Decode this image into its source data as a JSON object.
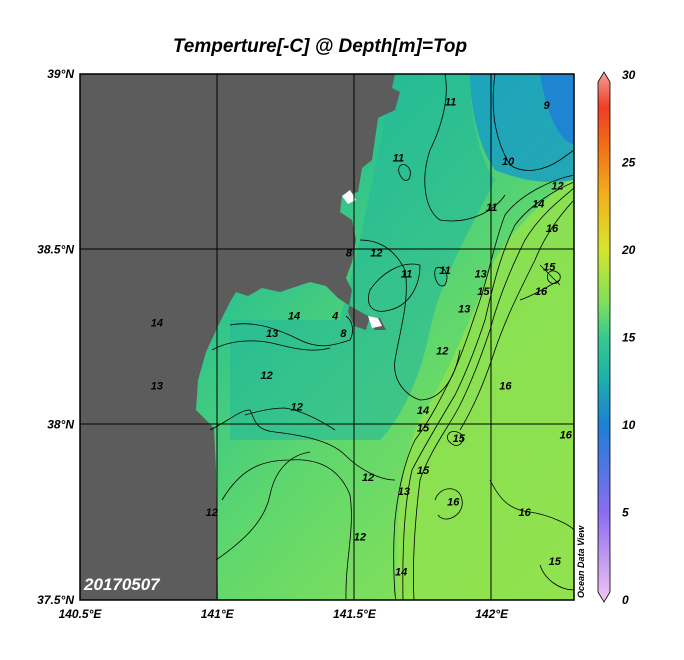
{
  "chart_data": {
    "type": "heatmap",
    "title": "Temperture[-C] @ Depth[m]=Top",
    "date_label": "20170507",
    "watermark": "Ocean Data View",
    "x_axis": {
      "range": [
        140.5,
        142.3
      ],
      "ticks": [
        {
          "value": 140.5,
          "label": "140.5°E"
        },
        {
          "value": 141.0,
          "label": "141°E"
        },
        {
          "value": 141.5,
          "label": "141.5°E"
        },
        {
          "value": 142.0,
          "label": "142°E"
        }
      ]
    },
    "y_axis": {
      "range": [
        37.5,
        39.0
      ],
      "ticks": [
        {
          "value": 37.5,
          "label": "37.5°N"
        },
        {
          "value": 38.0,
          "label": "38°N"
        },
        {
          "value": 38.5,
          "label": "38.5°N"
        },
        {
          "value": 39.0,
          "label": "39°N"
        }
      ]
    },
    "grid": true,
    "colorbar": {
      "range": [
        0,
        30
      ],
      "ticks": [
        0,
        5,
        10,
        15,
        20,
        25,
        30
      ],
      "stops": [
        {
          "value": 0,
          "color": "#f3c6f2"
        },
        {
          "value": 5,
          "color": "#8c6cf0"
        },
        {
          "value": 10,
          "color": "#1c7fd6"
        },
        {
          "value": 13,
          "color": "#1fb5a7"
        },
        {
          "value": 15,
          "color": "#39c98d"
        },
        {
          "value": 17,
          "color": "#7fe05a"
        },
        {
          "value": 20,
          "color": "#d7e52c"
        },
        {
          "value": 23,
          "color": "#f2b01c"
        },
        {
          "value": 26,
          "color": "#f06a18"
        },
        {
          "value": 28,
          "color": "#ef3e26"
        },
        {
          "value": 30,
          "color": "#f4a09a"
        }
      ]
    },
    "land_color": "#5c5c5c",
    "contour_labels": [
      {
        "lon": 142.2,
        "lat": 38.9,
        "label": "9"
      },
      {
        "lon": 141.85,
        "lat": 38.91,
        "label": "11"
      },
      {
        "lon": 142.06,
        "lat": 38.74,
        "label": "10"
      },
      {
        "lon": 141.66,
        "lat": 38.75,
        "label": "11"
      },
      {
        "lon": 142.24,
        "lat": 38.67,
        "label": "12"
      },
      {
        "lon": 142.17,
        "lat": 38.62,
        "label": "14"
      },
      {
        "lon": 142.0,
        "lat": 38.61,
        "label": "11"
      },
      {
        "lon": 142.22,
        "lat": 38.55,
        "label": "16"
      },
      {
        "lon": 141.58,
        "lat": 38.48,
        "label": "12"
      },
      {
        "lon": 141.48,
        "lat": 38.48,
        "label": "8"
      },
      {
        "lon": 141.69,
        "lat": 38.42,
        "label": "11"
      },
      {
        "lon": 141.83,
        "lat": 38.43,
        "label": "11"
      },
      {
        "lon": 141.96,
        "lat": 38.42,
        "label": "13"
      },
      {
        "lon": 142.21,
        "lat": 38.44,
        "label": "15"
      },
      {
        "lon": 141.97,
        "lat": 38.37,
        "label": "15"
      },
      {
        "lon": 142.18,
        "lat": 38.37,
        "label": "16"
      },
      {
        "lon": 141.9,
        "lat": 38.32,
        "label": "13"
      },
      {
        "lon": 141.28,
        "lat": 38.3,
        "label": "14"
      },
      {
        "lon": 141.43,
        "lat": 38.3,
        "label": "4"
      },
      {
        "lon": 140.78,
        "lat": 38.28,
        "label": "14"
      },
      {
        "lon": 141.46,
        "lat": 38.25,
        "label": "8"
      },
      {
        "lon": 141.2,
        "lat": 38.25,
        "label": "13"
      },
      {
        "lon": 141.82,
        "lat": 38.2,
        "label": "12"
      },
      {
        "lon": 141.18,
        "lat": 38.13,
        "label": "12"
      },
      {
        "lon": 140.78,
        "lat": 38.1,
        "label": "13"
      },
      {
        "lon": 142.05,
        "lat": 38.1,
        "label": "16"
      },
      {
        "lon": 141.29,
        "lat": 38.04,
        "label": "12"
      },
      {
        "lon": 141.75,
        "lat": 38.03,
        "label": "14"
      },
      {
        "lon": 141.75,
        "lat": 37.98,
        "label": "15"
      },
      {
        "lon": 141.88,
        "lat": 37.95,
        "label": "15"
      },
      {
        "lon": 142.27,
        "lat": 37.96,
        "label": "16"
      },
      {
        "lon": 141.75,
        "lat": 37.86,
        "label": "15"
      },
      {
        "lon": 141.55,
        "lat": 37.84,
        "label": "12"
      },
      {
        "lon": 141.68,
        "lat": 37.8,
        "label": "13"
      },
      {
        "lon": 141.86,
        "lat": 37.77,
        "label": "16"
      },
      {
        "lon": 140.98,
        "lat": 37.74,
        "label": "12"
      },
      {
        "lon": 142.12,
        "lat": 37.74,
        "label": "16"
      },
      {
        "lon": 141.52,
        "lat": 37.67,
        "label": "12"
      },
      {
        "lon": 142.23,
        "lat": 37.6,
        "label": "15"
      },
      {
        "lon": 141.67,
        "lat": 37.57,
        "label": "14"
      }
    ]
  }
}
